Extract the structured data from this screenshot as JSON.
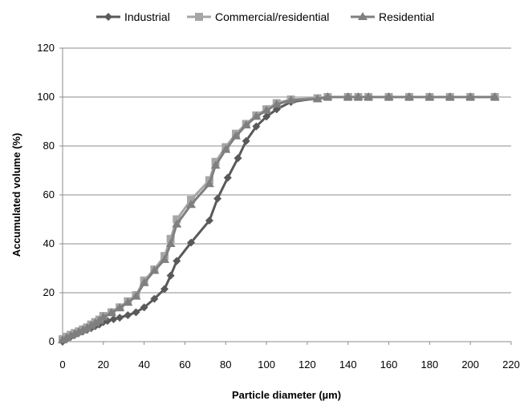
{
  "chart_data": {
    "type": "line",
    "title": "",
    "xlabel": "Particle diameter (µm)",
    "ylabel": "Accumulated volume (%)",
    "xlim": [
      0,
      220
    ],
    "ylim": [
      0,
      120
    ],
    "xticks": [
      0,
      20,
      40,
      60,
      80,
      100,
      120,
      140,
      160,
      180,
      200,
      220
    ],
    "yticks": [
      0,
      20,
      40,
      60,
      80,
      100,
      120
    ],
    "grid": "horizontal",
    "legend": "top",
    "series": [
      {
        "name": "Industrial",
        "color": "#595959",
        "marker": "diamond",
        "points": [
          [
            0,
            0
          ],
          [
            2,
            1.2
          ],
          [
            4,
            2
          ],
          [
            6,
            2.8
          ],
          [
            8,
            3.6
          ],
          [
            10,
            4.2
          ],
          [
            12,
            4.8
          ],
          [
            14,
            5.5
          ],
          [
            16,
            6.3
          ],
          [
            18,
            7
          ],
          [
            20,
            8
          ],
          [
            22,
            8.5
          ],
          [
            25,
            9.2
          ],
          [
            28,
            9.8
          ],
          [
            32,
            10.8
          ],
          [
            36,
            12
          ],
          [
            40,
            14
          ],
          [
            45,
            17.5
          ],
          [
            50,
            21.5
          ],
          [
            53,
            27
          ],
          [
            56,
            33
          ],
          [
            63,
            40.5
          ],
          [
            72,
            49.5
          ],
          [
            76,
            58.5
          ],
          [
            81,
            67
          ],
          [
            86,
            75
          ],
          [
            90,
            82
          ],
          [
            95,
            88
          ],
          [
            100,
            92
          ],
          [
            105,
            95
          ],
          [
            112,
            98
          ],
          [
            125,
            99.5
          ],
          [
            130,
            100
          ],
          [
            140,
            100
          ],
          [
            145,
            100
          ],
          [
            150,
            100
          ],
          [
            160,
            100
          ],
          [
            170,
            100
          ],
          [
            180,
            100
          ],
          [
            190,
            100
          ],
          [
            200,
            100
          ],
          [
            212,
            100
          ]
        ]
      },
      {
        "name": "Commercial/residential",
        "color": "#a6a6a6",
        "marker": "square",
        "points": [
          [
            0,
            1
          ],
          [
            2,
            2
          ],
          [
            4,
            2.8
          ],
          [
            6,
            3.5
          ],
          [
            8,
            4.2
          ],
          [
            10,
            5
          ],
          [
            12,
            5.8
          ],
          [
            14,
            7
          ],
          [
            16,
            8
          ],
          [
            18,
            9
          ],
          [
            20,
            10.5
          ],
          [
            24,
            12
          ],
          [
            28,
            14
          ],
          [
            32,
            16.5
          ],
          [
            36,
            19
          ],
          [
            40,
            25
          ],
          [
            45,
            29.5
          ],
          [
            50,
            35
          ],
          [
            53,
            42
          ],
          [
            56,
            50
          ],
          [
            63,
            58
          ],
          [
            72,
            66
          ],
          [
            75,
            73.5
          ],
          [
            80,
            79.5
          ],
          [
            85,
            85
          ],
          [
            90,
            89
          ],
          [
            95,
            92.5
          ],
          [
            100,
            95
          ],
          [
            105,
            97.5
          ],
          [
            112,
            99
          ],
          [
            125,
            99.5
          ],
          [
            130,
            100
          ],
          [
            140,
            100
          ],
          [
            145,
            100
          ],
          [
            150,
            100
          ],
          [
            160,
            100
          ],
          [
            170,
            100
          ],
          [
            180,
            100
          ],
          [
            190,
            100
          ],
          [
            200,
            100
          ],
          [
            212,
            100
          ]
        ]
      },
      {
        "name": "Residential",
        "color": "#7f7f7f",
        "marker": "triangle",
        "points": [
          [
            0,
            0.6
          ],
          [
            2,
            1.6
          ],
          [
            4,
            2.4
          ],
          [
            6,
            3.2
          ],
          [
            8,
            4
          ],
          [
            10,
            4.8
          ],
          [
            12,
            5.6
          ],
          [
            14,
            6.6
          ],
          [
            16,
            7.6
          ],
          [
            18,
            8.6
          ],
          [
            20,
            10
          ],
          [
            24,
            11.8
          ],
          [
            28,
            13.8
          ],
          [
            32,
            16
          ],
          [
            36,
            18.5
          ],
          [
            40,
            24
          ],
          [
            45,
            29
          ],
          [
            50,
            33.5
          ],
          [
            53,
            40
          ],
          [
            56,
            48
          ],
          [
            63,
            56
          ],
          [
            72,
            64.5
          ],
          [
            75,
            72
          ],
          [
            80,
            78.5
          ],
          [
            85,
            84
          ],
          [
            90,
            88.5
          ],
          [
            95,
            92
          ],
          [
            100,
            94.5
          ],
          [
            105,
            97
          ],
          [
            112,
            98.7
          ],
          [
            125,
            99.2
          ],
          [
            130,
            100
          ],
          [
            140,
            100
          ],
          [
            145,
            100
          ],
          [
            150,
            100
          ],
          [
            160,
            100
          ],
          [
            170,
            100
          ],
          [
            180,
            100
          ],
          [
            190,
            100
          ],
          [
            200,
            100
          ],
          [
            212,
            100
          ]
        ]
      }
    ]
  }
}
